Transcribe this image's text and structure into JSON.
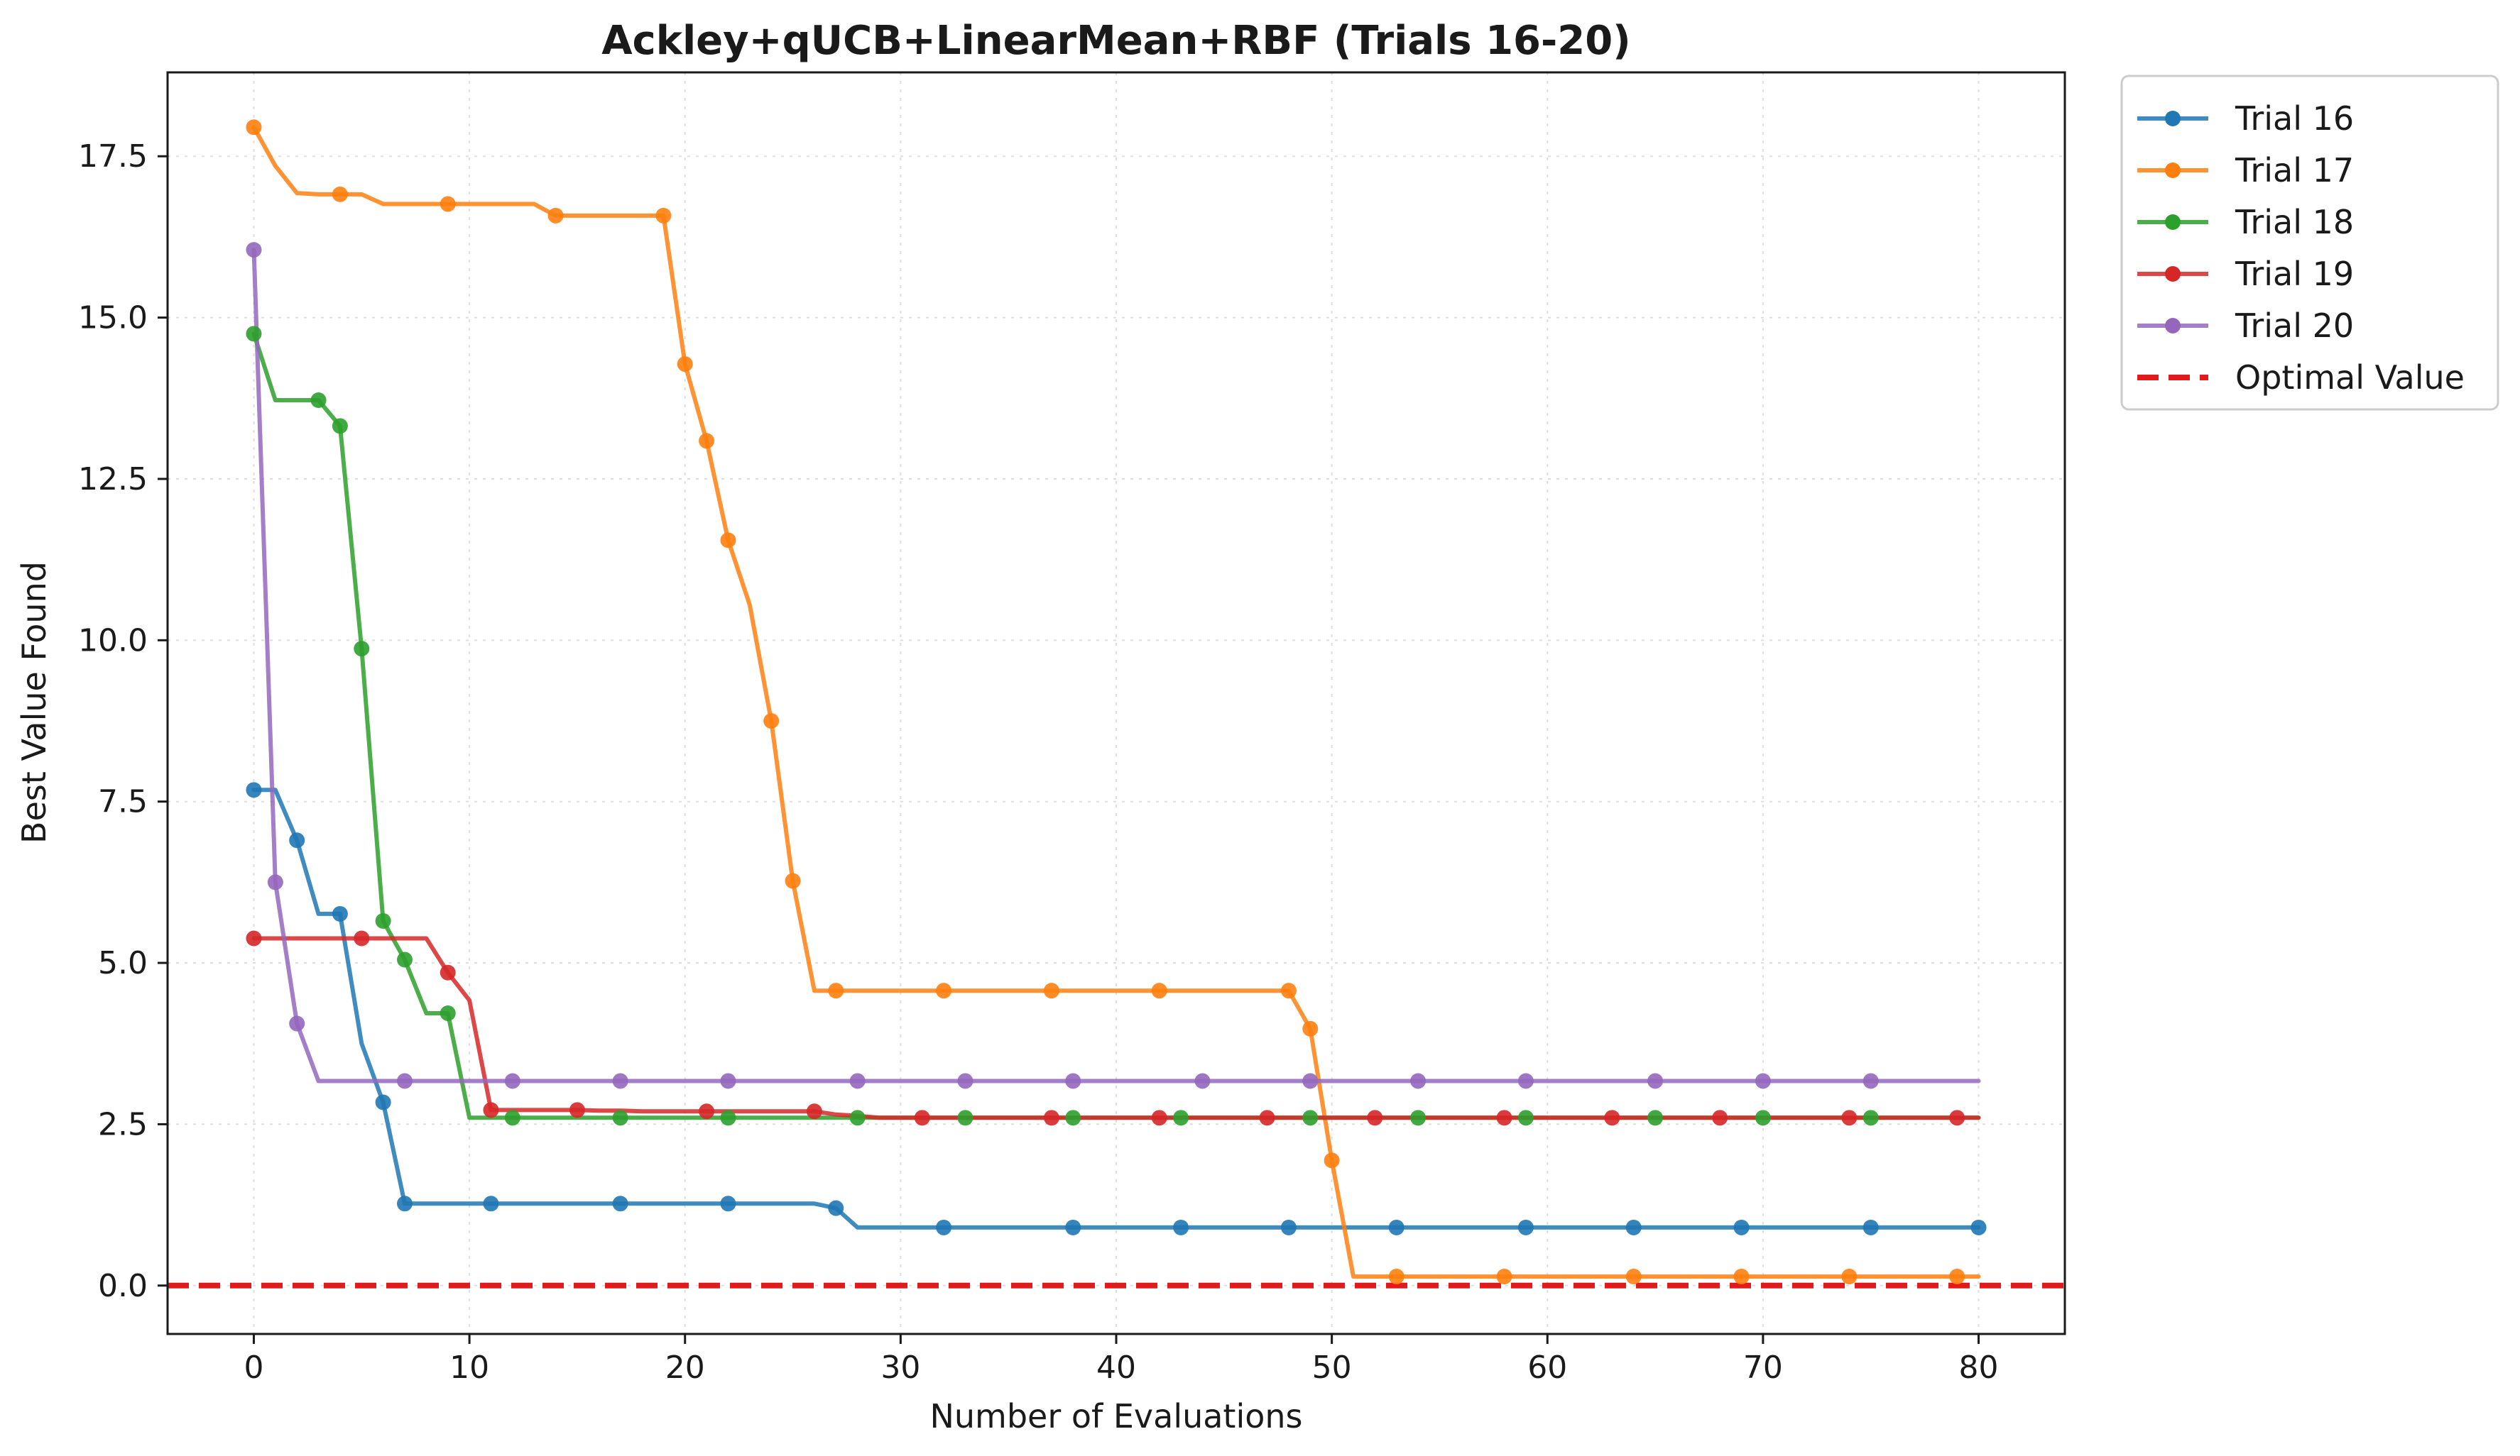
{
  "chart_data": {
    "type": "line",
    "title": "Ackley+qUCB+LinearMean+RBF (Trials 16-20)",
    "xlabel": "Number of Evaluations",
    "ylabel": "Best Value Found",
    "xlim": [
      -4,
      84
    ],
    "ylim": [
      -0.75,
      18.8
    ],
    "xticks": [
      0,
      10,
      20,
      30,
      40,
      50,
      60,
      70,
      80
    ],
    "yticks": [
      0.0,
      2.5,
      5.0,
      7.5,
      10.0,
      12.5,
      15.0,
      17.5
    ],
    "ytick_labels": [
      "0.0",
      "2.5",
      "5.0",
      "7.5",
      "10.0",
      "12.5",
      "15.0",
      "17.5"
    ],
    "grid": true,
    "legend_position": "outside-top-right",
    "series": [
      {
        "name": "Trial 16",
        "color": "#1f77b4",
        "x": [
          0,
          1,
          2,
          3,
          4,
          5,
          6,
          7,
          8,
          9,
          10,
          11,
          12,
          13,
          14,
          15,
          16,
          17,
          18,
          19,
          20,
          21,
          22,
          23,
          24,
          25,
          26,
          27,
          28,
          29,
          30,
          31,
          32,
          33,
          34,
          35,
          36,
          37,
          38,
          39,
          40,
          41,
          42,
          43,
          44,
          45,
          46,
          47,
          48,
          49,
          50,
          51,
          52,
          53,
          54,
          55,
          56,
          57,
          58,
          59,
          60,
          61,
          62,
          63,
          64,
          65,
          66,
          67,
          68,
          69,
          70,
          71,
          72,
          73,
          74,
          75,
          76,
          77,
          78,
          79,
          80
        ],
        "y": [
          7.68,
          7.68,
          6.9,
          5.76,
          5.76,
          3.75,
          2.84,
          1.27,
          1.27,
          1.27,
          1.27,
          1.27,
          1.27,
          1.27,
          1.27,
          1.27,
          1.27,
          1.27,
          1.27,
          1.27,
          1.27,
          1.27,
          1.27,
          1.27,
          1.27,
          1.27,
          1.27,
          1.2,
          0.9,
          0.9,
          0.9,
          0.9,
          0.9,
          0.9,
          0.9,
          0.9,
          0.9,
          0.9,
          0.9,
          0.9,
          0.9,
          0.9,
          0.9,
          0.9,
          0.9,
          0.9,
          0.9,
          0.9,
          0.9,
          0.9,
          0.9,
          0.9,
          0.9,
          0.9,
          0.9,
          0.9,
          0.9,
          0.9,
          0.9,
          0.9,
          0.9,
          0.9,
          0.9,
          0.9,
          0.9,
          0.9,
          0.9,
          0.9,
          0.9,
          0.9,
          0.9,
          0.9,
          0.9,
          0.9,
          0.9,
          0.9,
          0.9,
          0.9,
          0.9,
          0.9,
          0.9
        ],
        "marker_x": [
          0,
          2,
          4,
          6,
          7,
          11,
          17,
          22,
          27,
          32,
          38,
          43,
          48,
          53,
          59,
          64,
          69,
          75,
          80
        ]
      },
      {
        "name": "Trial 17",
        "color": "#ff7f0e",
        "x": [
          0,
          1,
          2,
          3,
          4,
          5,
          6,
          7,
          8,
          9,
          10,
          11,
          12,
          13,
          14,
          15,
          16,
          17,
          18,
          19,
          20,
          21,
          22,
          23,
          24,
          25,
          26,
          27,
          28,
          29,
          30,
          31,
          32,
          33,
          34,
          35,
          36,
          37,
          38,
          39,
          40,
          41,
          42,
          43,
          44,
          45,
          46,
          47,
          48,
          49,
          50,
          51,
          52,
          53,
          54,
          55,
          56,
          57,
          58,
          59,
          60,
          61,
          62,
          63,
          64,
          65,
          66,
          67,
          68,
          69,
          70,
          71,
          72,
          73,
          74,
          75,
          76,
          77,
          78,
          79,
          80
        ],
        "y": [
          17.95,
          17.35,
          16.93,
          16.91,
          16.91,
          16.91,
          16.76,
          16.76,
          16.76,
          16.76,
          16.76,
          16.76,
          16.76,
          16.76,
          16.58,
          16.58,
          16.58,
          16.58,
          16.58,
          16.58,
          14.28,
          13.09,
          11.55,
          10.55,
          8.75,
          6.27,
          4.57,
          4.57,
          4.57,
          4.57,
          4.57,
          4.57,
          4.57,
          4.57,
          4.57,
          4.57,
          4.57,
          4.57,
          4.57,
          4.57,
          4.57,
          4.57,
          4.57,
          4.57,
          4.57,
          4.57,
          4.57,
          4.57,
          4.57,
          3.98,
          1.94,
          0.14,
          0.14,
          0.14,
          0.14,
          0.14,
          0.14,
          0.14,
          0.14,
          0.14,
          0.14,
          0.14,
          0.14,
          0.14,
          0.14,
          0.14,
          0.14,
          0.14,
          0.14,
          0.14,
          0.14,
          0.14,
          0.14,
          0.14,
          0.14,
          0.14,
          0.14,
          0.14,
          0.14,
          0.14,
          0.14
        ],
        "marker_x": [
          0,
          4,
          9,
          14,
          19,
          20,
          21,
          22,
          24,
          25,
          27,
          32,
          37,
          42,
          48,
          49,
          50,
          53,
          58,
          64,
          69,
          74,
          79
        ]
      },
      {
        "name": "Trial 18",
        "color": "#2ca02c",
        "x": [
          0,
          1,
          2,
          3,
          4,
          5,
          6,
          7,
          8,
          9,
          10,
          11,
          12,
          13,
          14,
          15,
          16,
          17,
          18,
          19,
          20,
          21,
          22,
          23,
          24,
          25,
          26,
          27,
          28,
          29,
          30,
          31,
          32,
          33,
          34,
          35,
          36,
          37,
          38,
          39,
          40,
          41,
          42,
          43,
          44,
          45,
          46,
          47,
          48,
          49,
          50,
          51,
          52,
          53,
          54,
          55,
          56,
          57,
          58,
          59,
          60,
          61,
          62,
          63,
          64,
          65,
          66,
          67,
          68,
          69,
          70,
          71,
          72,
          73,
          74,
          75,
          76,
          77,
          78,
          79,
          80
        ],
        "y": [
          14.75,
          13.72,
          13.72,
          13.72,
          13.32,
          9.87,
          5.65,
          5.05,
          4.22,
          4.22,
          2.6,
          2.6,
          2.6,
          2.6,
          2.6,
          2.6,
          2.6,
          2.6,
          2.6,
          2.6,
          2.6,
          2.6,
          2.6,
          2.6,
          2.6,
          2.6,
          2.6,
          2.6,
          2.6,
          2.6,
          2.6,
          2.6,
          2.6,
          2.6,
          2.6,
          2.6,
          2.6,
          2.6,
          2.6,
          2.6,
          2.6,
          2.6,
          2.6,
          2.6,
          2.6,
          2.6,
          2.6,
          2.6,
          2.6,
          2.6,
          2.6,
          2.6,
          2.6,
          2.6,
          2.6,
          2.6,
          2.6,
          2.6,
          2.6,
          2.6,
          2.6,
          2.6,
          2.6,
          2.6,
          2.6,
          2.6,
          2.6,
          2.6,
          2.6,
          2.6,
          2.6,
          2.6,
          2.6,
          2.6,
          2.6,
          2.6,
          2.6,
          2.6,
          2.6,
          2.6,
          2.6
        ],
        "marker_x": [
          0,
          3,
          4,
          5,
          6,
          7,
          9,
          12,
          17,
          22,
          28,
          33,
          38,
          43,
          49,
          54,
          59,
          65,
          70,
          75
        ]
      },
      {
        "name": "Trial 19",
        "color": "#d62728",
        "x": [
          0,
          1,
          2,
          3,
          4,
          5,
          6,
          7,
          8,
          9,
          10,
          11,
          12,
          13,
          14,
          15,
          16,
          17,
          18,
          19,
          20,
          21,
          22,
          23,
          24,
          25,
          26,
          27,
          28,
          29,
          30,
          31,
          32,
          33,
          34,
          35,
          36,
          37,
          38,
          39,
          40,
          41,
          42,
          43,
          44,
          45,
          46,
          47,
          48,
          49,
          50,
          51,
          52,
          53,
          54,
          55,
          56,
          57,
          58,
          59,
          60,
          61,
          62,
          63,
          64,
          65,
          66,
          67,
          68,
          69,
          70,
          71,
          72,
          73,
          74,
          75,
          76,
          77,
          78,
          79,
          80
        ],
        "y": [
          5.38,
          5.38,
          5.38,
          5.38,
          5.38,
          5.38,
          5.38,
          5.38,
          5.38,
          4.85,
          4.42,
          2.72,
          2.72,
          2.72,
          2.72,
          2.72,
          2.71,
          2.71,
          2.7,
          2.7,
          2.7,
          2.7,
          2.7,
          2.7,
          2.7,
          2.7,
          2.7,
          2.65,
          2.63,
          2.6,
          2.6,
          2.6,
          2.6,
          2.6,
          2.6,
          2.6,
          2.6,
          2.6,
          2.6,
          2.6,
          2.6,
          2.6,
          2.6,
          2.6,
          2.6,
          2.6,
          2.6,
          2.6,
          2.6,
          2.6,
          2.6,
          2.6,
          2.6,
          2.6,
          2.6,
          2.6,
          2.6,
          2.6,
          2.6,
          2.6,
          2.6,
          2.6,
          2.6,
          2.6,
          2.6,
          2.6,
          2.6,
          2.6,
          2.6,
          2.6,
          2.6,
          2.6,
          2.6,
          2.6,
          2.6,
          2.6,
          2.6,
          2.6,
          2.6,
          2.6,
          2.6
        ],
        "marker_x": [
          0,
          5,
          9,
          11,
          15,
          21,
          26,
          31,
          37,
          42,
          47,
          52,
          58,
          63,
          68,
          74,
          79
        ]
      },
      {
        "name": "Trial 20",
        "color": "#9467bd",
        "x": [
          0,
          1,
          2,
          3,
          4,
          5,
          6,
          7,
          8,
          9,
          10,
          11,
          12,
          13,
          14,
          15,
          16,
          17,
          18,
          19,
          20,
          21,
          22,
          23,
          24,
          25,
          26,
          27,
          28,
          29,
          30,
          31,
          32,
          33,
          34,
          35,
          36,
          37,
          38,
          39,
          40,
          41,
          42,
          43,
          44,
          45,
          46,
          47,
          48,
          49,
          50,
          51,
          52,
          53,
          54,
          55,
          56,
          57,
          58,
          59,
          60,
          61,
          62,
          63,
          64,
          65,
          66,
          67,
          68,
          69,
          70,
          71,
          72,
          73,
          74,
          75,
          76,
          77,
          78,
          79,
          80
        ],
        "y": [
          16.05,
          6.25,
          4.06,
          3.17,
          3.17,
          3.17,
          3.17,
          3.17,
          3.17,
          3.17,
          3.17,
          3.17,
          3.17,
          3.17,
          3.17,
          3.17,
          3.17,
          3.17,
          3.17,
          3.17,
          3.17,
          3.17,
          3.17,
          3.17,
          3.17,
          3.17,
          3.17,
          3.17,
          3.17,
          3.17,
          3.17,
          3.17,
          3.17,
          3.17,
          3.17,
          3.17,
          3.17,
          3.17,
          3.17,
          3.17,
          3.17,
          3.17,
          3.17,
          3.17,
          3.17,
          3.17,
          3.17,
          3.17,
          3.17,
          3.17,
          3.17,
          3.17,
          3.17,
          3.17,
          3.17,
          3.17,
          3.17,
          3.17,
          3.17,
          3.17,
          3.17,
          3.17,
          3.17,
          3.17,
          3.17,
          3.17,
          3.17,
          3.17,
          3.17,
          3.17,
          3.17,
          3.17,
          3.17,
          3.17,
          3.17,
          3.17,
          3.17,
          3.17,
          3.17,
          3.17,
          3.17
        ],
        "marker_x": [
          0,
          1,
          2,
          7,
          12,
          17,
          22,
          28,
          33,
          38,
          44,
          49,
          54,
          59,
          65,
          70,
          75
        ]
      }
    ],
    "reference_line": {
      "name": "Optimal Value",
      "y": 0.0,
      "color": "#e31a1c",
      "style": "dashed"
    }
  }
}
